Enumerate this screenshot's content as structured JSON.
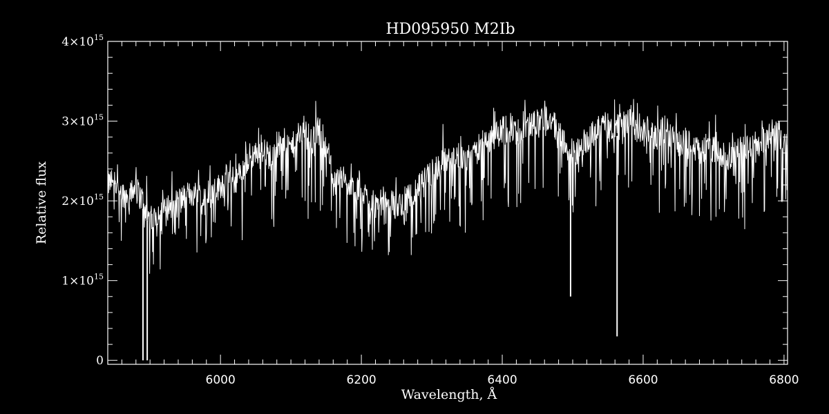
{
  "chart_data": {
    "type": "line",
    "title": "HD095950   M2Ib",
    "xlabel": "Wavelength, Å",
    "ylabel": "Relative flux",
    "xlim": [
      5840,
      6805
    ],
    "ylim": [
      -50000000000000.0,
      4000000000000000.0
    ],
    "grid": false,
    "legend": "none",
    "colors": {
      "background": "#000000",
      "line": "#ffffff",
      "axes": "#ffffff"
    },
    "x_ticks": [
      {
        "value": 6000,
        "label": "6000"
      },
      {
        "value": 6200,
        "label": "6200"
      },
      {
        "value": 6400,
        "label": "6400"
      },
      {
        "value": 6600,
        "label": "6600"
      },
      {
        "value": 6800,
        "label": "6800"
      }
    ],
    "y_ticks": [
      {
        "value": 0,
        "label": "0"
      },
      {
        "value": 1000000000000000.0,
        "mant": "1×10",
        "exp": "15"
      },
      {
        "value": 2000000000000000.0,
        "mant": "2×10",
        "exp": "15"
      },
      {
        "value": 3000000000000000.0,
        "mant": "3×10",
        "exp": "15"
      },
      {
        "value": 4000000000000000.0,
        "mant": "4×10",
        "exp": "15"
      }
    ],
    "series": [
      {
        "x": [
          5840,
          5850,
          5860,
          5870,
          5880,
          5890,
          5900,
          5910,
          5920,
          5930,
          5940,
          5950,
          5960,
          5970,
          5980,
          5990,
          6000,
          6010,
          6020,
          6030,
          6040,
          6050,
          6060,
          6070,
          6080,
          6090,
          6100,
          6110,
          6120,
          6130,
          6140,
          6150,
          6160,
          6170,
          6180,
          6190,
          6200,
          6210,
          6220,
          6230,
          6240,
          6250,
          6260,
          6270,
          6280,
          6290,
          6300,
          6310,
          6320,
          6330,
          6340,
          6350,
          6360,
          6370,
          6380,
          6390,
          6400,
          6410,
          6420,
          6430,
          6440,
          6450,
          6460,
          6470,
          6480,
          6490,
          6500,
          6510,
          6520,
          6530,
          6540,
          6550,
          6560,
          6570,
          6580,
          6590,
          6600,
          6610,
          6620,
          6630,
          6640,
          6650,
          6660,
          6670,
          6680,
          6690,
          6700,
          6710,
          6720,
          6730,
          6740,
          6750,
          6760,
          6770,
          6780,
          6790,
          6800
        ],
        "y": [
          2200000000000000.0,
          2300000000000000.0,
          2100000000000000.0,
          2050000000000000.0,
          2150000000000000.0,
          2000000000000000.0,
          1750000000000000.0,
          1850000000000000.0,
          1900000000000000.0,
          1950000000000000.0,
          2000000000000000.0,
          2050000000000000.0,
          2100000000000000.0,
          2050000000000000.0,
          2150000000000000.0,
          2100000000000000.0,
          2200000000000000.0,
          2300000000000000.0,
          2250000000000000.0,
          2350000000000000.0,
          2550000000000000.0,
          2600000000000000.0,
          2650000000000000.0,
          2550000000000000.0,
          2700000000000000.0,
          2750000000000000.0,
          2650000000000000.0,
          2800000000000000.0,
          2850000000000000.0,
          2750000000000000.0,
          2900000000000000.0,
          2700000000000000.0,
          2350000000000000.0,
          2300000000000000.0,
          2200000000000000.0,
          2100000000000000.0,
          2150000000000000.0,
          2000000000000000.0,
          1950000000000000.0,
          2000000000000000.0,
          2050000000000000.0,
          1900000000000000.0,
          2000000000000000.0,
          2100000000000000.0,
          2150000000000000.0,
          2250000000000000.0,
          2350000000000000.0,
          2450000000000000.0,
          2500000000000000.0,
          2550000000000000.0,
          2600000000000000.0,
          2500000000000000.0,
          2650000000000000.0,
          2700000000000000.0,
          2750000000000000.0,
          2800000000000000.0,
          2900000000000000.0,
          2950000000000000.0,
          2850000000000000.0,
          2900000000000000.0,
          2950000000000000.0,
          3000000000000000.0,
          3050000000000000.0,
          3000000000000000.0,
          2850000000000000.0,
          2700000000000000.0,
          2650000000000000.0,
          2600000000000000.0,
          2750000000000000.0,
          2850000000000000.0,
          2950000000000000.0,
          3000000000000000.0,
          2900000000000000.0,
          2950000000000000.0,
          3000000000000000.0,
          2900000000000000.0,
          2950000000000000.0,
          2850000000000000.0,
          2800000000000000.0,
          2900000000000000.0,
          2850000000000000.0,
          2700000000000000.0,
          2750000000000000.0,
          2700000000000000.0,
          2600000000000000.0,
          2700000000000000.0,
          2650000000000000.0,
          2600000000000000.0,
          2550000000000000.0,
          2600000000000000.0,
          2650000000000000.0,
          2700000000000000.0,
          2700000000000000.0,
          2750000000000000.0,
          2850000000000000.0,
          2900000000000000.0,
          2700000000000000.0
        ],
        "absorption_lines": [
          {
            "x": 5890,
            "y": 0.0
          },
          {
            "x": 5896,
            "y": 0.0
          },
          {
            "x": 6563,
            "y": 300000000000000.0
          },
          {
            "x": 6497,
            "y": 800000000000000.0
          }
        ]
      }
    ]
  }
}
